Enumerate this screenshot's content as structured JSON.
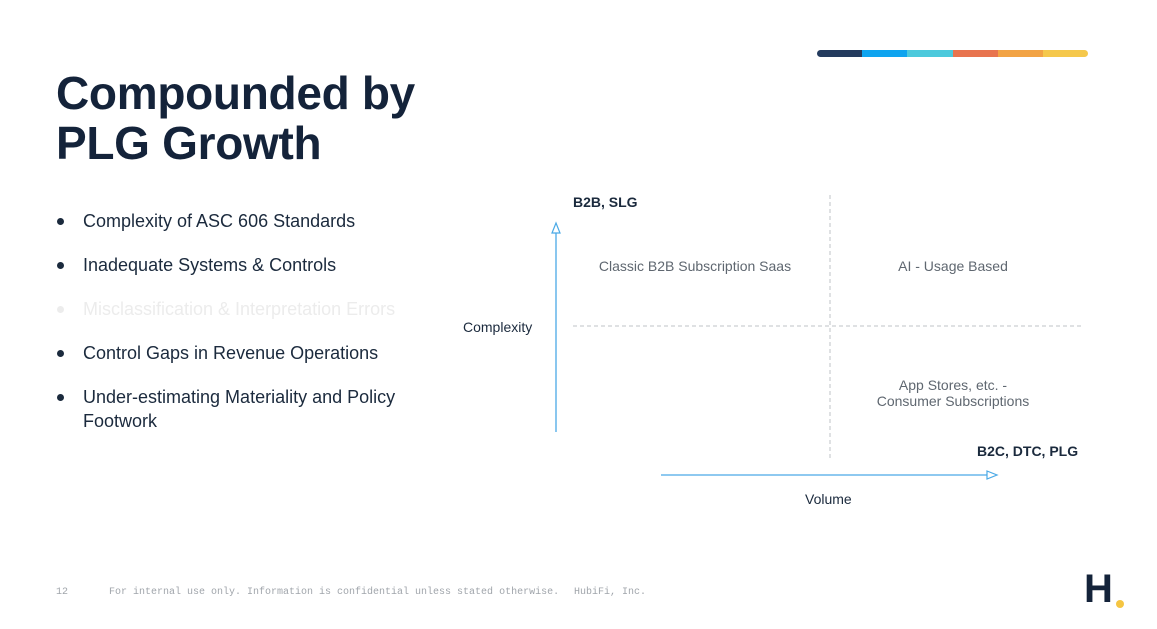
{
  "colors": {
    "colorbar": [
      "#243b5e",
      "#0ea4ef",
      "#4cc9dc",
      "#e8744f",
      "#f2a345",
      "#f5c84c"
    ],
    "axis": "#4aa9e6",
    "logo_dot": "#f5c542"
  },
  "slide": {
    "title_line1": "Compounded by",
    "title_line2": "PLG Growth",
    "bullets": [
      "Complexity of ASC 606 Standards",
      "Inadequate Systems & Controls",
      "Misclassification & Interpretation Errors",
      "Control Gaps in Revenue Operations",
      "Under-estimating Materiality and Policy Footwork"
    ]
  },
  "diagram": {
    "y_top_label": "B2B, SLG",
    "y_axis_label": "Complexity",
    "x_right_label": "B2C, DTC, PLG",
    "x_axis_label": "Volume",
    "quadrants": {
      "top_left": "Classic B2B Subscription Saas",
      "top_right": "AI - Usage Based",
      "bottom_right_line1": "App Stores, etc. -",
      "bottom_right_line2": "Consumer Subscriptions"
    }
  },
  "footer": {
    "page_number": "12",
    "confidential": "For internal use only. Information is confidential unless stated otherwise.",
    "company": "HubiFi, Inc."
  },
  "logo": {
    "letter": "H",
    "dot": "."
  }
}
